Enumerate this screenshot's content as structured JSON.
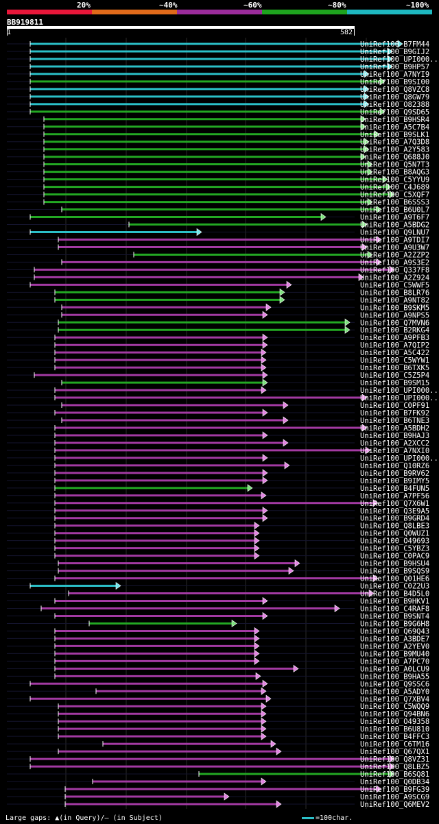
{
  "legend": {
    "labels": [
      "20%",
      "~40%",
      "~60%",
      "~80%",
      "~100%"
    ],
    "colors": [
      "#e8173a",
      "#e06a1a",
      "#9b2c9b",
      "#1ea31e",
      "#1eb8c0"
    ]
  },
  "query": {
    "id": "BB919811",
    "start": "1",
    "end": "582"
  },
  "footer": {
    "gaps_text": "Large gaps: ▲(in Query)/– (in Subject)",
    "scale_text": "=100char."
  },
  "hits": [
    {
      "id": "UniRef100_B7FM44",
      "s": 44,
      "e": 587,
      "c": "cyan"
    },
    {
      "id": "UniRef100_B9GIJ2",
      "s": 44,
      "e": 572,
      "c": "cyan"
    },
    {
      "id": "UniRef100_UPI000..",
      "s": 44,
      "e": 572,
      "c": "cyan"
    },
    {
      "id": "UniRef100_B9HP57",
      "s": 44,
      "e": 572,
      "c": "cyan"
    },
    {
      "id": "UniRef100_A7NYI9",
      "s": 44,
      "e": 538,
      "c": "cyan"
    },
    {
      "id": "UniRef100_B9SI00",
      "s": 44,
      "e": 561,
      "c": "green"
    },
    {
      "id": "UniRef100_Q8VZC8",
      "s": 44,
      "e": 538,
      "c": "cyan"
    },
    {
      "id": "UniRef100_Q8GW79",
      "s": 44,
      "e": 538,
      "c": "cyan"
    },
    {
      "id": "UniRef100_O82388",
      "s": 44,
      "e": 538,
      "c": "cyan"
    },
    {
      "id": "UniRef100_Q9SD65",
      "s": 44,
      "e": 561,
      "c": "green"
    },
    {
      "id": "UniRef100_B9HSR4",
      "s": 64,
      "e": 533,
      "c": "green"
    },
    {
      "id": "UniRef100_A5C7B4",
      "s": 64,
      "e": 533,
      "c": "green"
    },
    {
      "id": "UniRef100_B9SLK1",
      "s": 64,
      "e": 553,
      "c": "green"
    },
    {
      "id": "UniRef100_A7Q3D8",
      "s": 64,
      "e": 538,
      "c": "green"
    },
    {
      "id": "UniRef100_A2Y583",
      "s": 64,
      "e": 538,
      "c": "green"
    },
    {
      "id": "UniRef100_Q688J0",
      "s": 64,
      "e": 533,
      "c": "green"
    },
    {
      "id": "UniRef100_Q5N7T3",
      "s": 64,
      "e": 543,
      "c": "green"
    },
    {
      "id": "UniRef100_B8AQG3",
      "s": 64,
      "e": 543,
      "c": "green"
    },
    {
      "id": "UniRef100_C5YYU9",
      "s": 64,
      "e": 565,
      "c": "green"
    },
    {
      "id": "UniRef100_C4J689",
      "s": 64,
      "e": 570,
      "c": "green"
    },
    {
      "id": "UniRef100_C5XQF7",
      "s": 64,
      "e": 575,
      "c": "green"
    },
    {
      "id": "UniRef100_B6SSS3",
      "s": 64,
      "e": 543,
      "c": "green"
    },
    {
      "id": "UniRef100_B6U0L7",
      "s": 90,
      "e": 556,
      "c": "green"
    },
    {
      "id": "UniRef100_A9T6F7",
      "s": 44,
      "e": 475,
      "c": "green"
    },
    {
      "id": "UniRef100_A5BDG2",
      "s": 188,
      "e": 535,
      "c": "green"
    },
    {
      "id": "UniRef100_Q9LNU7",
      "s": 44,
      "e": 294,
      "c": "cyan"
    },
    {
      "id": "UniRef100_A9TDI7",
      "s": 85,
      "e": 556,
      "c": "purple"
    },
    {
      "id": "UniRef100_A9U3W7",
      "s": 85,
      "e": 535,
      "c": "purple"
    },
    {
      "id": "UniRef100_A2ZZP2",
      "s": 195,
      "e": 543,
      "c": "green"
    },
    {
      "id": "UniRef100_A9S3E2",
      "s": 90,
      "e": 556,
      "c": "purple"
    },
    {
      "id": "UniRef100_Q337F8",
      "s": 50,
      "e": 575,
      "c": "purple"
    },
    {
      "id": "UniRef100_A2Z924",
      "s": 50,
      "e": 530,
      "c": "purple"
    },
    {
      "id": "UniRef100_C5WWF5",
      "s": 44,
      "e": 425,
      "c": "purple"
    },
    {
      "id": "UniRef100_B8LR76",
      "s": 80,
      "e": 415,
      "c": "green"
    },
    {
      "id": "UniRef100_A9NT82",
      "s": 80,
      "e": 415,
      "c": "green"
    },
    {
      "id": "UniRef100_B9SKM5",
      "s": 90,
      "e": 395,
      "c": "purple"
    },
    {
      "id": "UniRef100_A9NPS5",
      "s": 90,
      "e": 390,
      "c": "purple"
    },
    {
      "id": "UniRef100_Q7MVN6",
      "s": 85,
      "e": 510,
      "c": "green"
    },
    {
      "id": "UniRef100_B2RKG4",
      "s": 85,
      "e": 510,
      "c": "green"
    },
    {
      "id": "UniRef100_A9PFB3",
      "s": 80,
      "e": 390,
      "c": "purple"
    },
    {
      "id": "UniRef100_A7QIP2",
      "s": 80,
      "e": 390,
      "c": "purple"
    },
    {
      "id": "UniRef100_A5C422",
      "s": 80,
      "e": 388,
      "c": "purple"
    },
    {
      "id": "UniRef100_C5WYW1",
      "s": 80,
      "e": 388,
      "c": "purple"
    },
    {
      "id": "UniRef100_B6TXK5",
      "s": 80,
      "e": 388,
      "c": "purple"
    },
    {
      "id": "UniRef100_C5Z5P4",
      "s": 50,
      "e": 390,
      "c": "purple"
    },
    {
      "id": "UniRef100_B9SM15",
      "s": 90,
      "e": 390,
      "c": "green"
    },
    {
      "id": "UniRef100_UPI000..",
      "s": 80,
      "e": 388,
      "c": "purple"
    },
    {
      "id": "UniRef100_UPI000..",
      "s": 80,
      "e": 535,
      "c": "purple"
    },
    {
      "id": "UniRef100_C0PF91",
      "s": 90,
      "e": 420,
      "c": "purple"
    },
    {
      "id": "UniRef100_B7FK92",
      "s": 80,
      "e": 390,
      "c": "purple"
    },
    {
      "id": "UniRef100_B6TNE3",
      "s": 90,
      "e": 420,
      "c": "purple"
    },
    {
      "id": "UniRef100_A5BDH2",
      "s": 80,
      "e": 535,
      "c": "purple"
    },
    {
      "id": "UniRef100_B9HAJ3",
      "s": 80,
      "e": 390,
      "c": "purple"
    },
    {
      "id": "UniRef100_A2XCC2",
      "s": 80,
      "e": 420,
      "c": "purple"
    },
    {
      "id": "UniRef100_A7NXI0",
      "s": 80,
      "e": 540,
      "c": "purple"
    },
    {
      "id": "UniRef100_UPI000..",
      "s": 80,
      "e": 390,
      "c": "purple"
    },
    {
      "id": "UniRef100_Q10RZ6",
      "s": 80,
      "e": 422,
      "c": "purple"
    },
    {
      "id": "UniRef100_B9RV62",
      "s": 80,
      "e": 390,
      "c": "purple"
    },
    {
      "id": "UniRef100_B9IMY5",
      "s": 80,
      "e": 390,
      "c": "purple"
    },
    {
      "id": "UniRef100_B4FUN5",
      "s": 80,
      "e": 368,
      "c": "green"
    },
    {
      "id": "UniRef100_A7PF56",
      "s": 80,
      "e": 388,
      "c": "purple"
    },
    {
      "id": "UniRef100_Q7X6W1",
      "s": 80,
      "e": 551,
      "c": "purple"
    },
    {
      "id": "UniRef100_Q3E9A5",
      "s": 80,
      "e": 390,
      "c": "purple"
    },
    {
      "id": "UniRef100_B9GRD4",
      "s": 80,
      "e": 390,
      "c": "purple"
    },
    {
      "id": "UniRef100_Q8LBE3",
      "s": 80,
      "e": 378,
      "c": "purple"
    },
    {
      "id": "UniRef100_Q0WUZ1",
      "s": 80,
      "e": 378,
      "c": "purple"
    },
    {
      "id": "UniRef100_O49693",
      "s": 80,
      "e": 378,
      "c": "purple"
    },
    {
      "id": "UniRef100_C5YBZ3",
      "s": 80,
      "e": 378,
      "c": "purple"
    },
    {
      "id": "UniRef100_C0PAC9",
      "s": 80,
      "e": 378,
      "c": "purple"
    },
    {
      "id": "UniRef100_B9HSU4",
      "s": 85,
      "e": 437,
      "c": "purple"
    },
    {
      "id": "UniRef100_B9SQS9",
      "s": 85,
      "e": 428,
      "c": "purple"
    },
    {
      "id": "UniRef100_Q01HE6",
      "s": 80,
      "e": 551,
      "c": "purple"
    },
    {
      "id": "UniRef100_C0Z2U3",
      "s": 44,
      "e": 176,
      "c": "cyan"
    },
    {
      "id": "UniRef100_B4D5L0",
      "s": 100,
      "e": 545,
      "c": "purple"
    },
    {
      "id": "UniRef100_B9HKV1",
      "s": 80,
      "e": 390,
      "c": "purple"
    },
    {
      "id": "UniRef100_C4RAF8",
      "s": 60,
      "e": 495,
      "c": "purple"
    },
    {
      "id": "UniRef100_B9SNT4",
      "s": 80,
      "e": 390,
      "c": "purple"
    },
    {
      "id": "UniRef100_B9G6H8",
      "s": 130,
      "e": 345,
      "c": "green"
    },
    {
      "id": "UniRef100_Q69Q43",
      "s": 80,
      "e": 378,
      "c": "purple"
    },
    {
      "id": "UniRef100_A3BDE7",
      "s": 80,
      "e": 378,
      "c": "purple"
    },
    {
      "id": "UniRef100_A2YEV0",
      "s": 80,
      "e": 378,
      "c": "purple"
    },
    {
      "id": "UniRef100_B9MU40",
      "s": 80,
      "e": 378,
      "c": "purple"
    },
    {
      "id": "UniRef100_A7PC70",
      "s": 80,
      "e": 378,
      "c": "purple"
    },
    {
      "id": "UniRef100_A0LCU9",
      "s": 80,
      "e": 435,
      "c": "purple"
    },
    {
      "id": "UniRef100_B9HA55",
      "s": 80,
      "e": 380,
      "c": "purple"
    },
    {
      "id": "UniRef100_Q9SSC6",
      "s": 44,
      "e": 390,
      "c": "purple"
    },
    {
      "id": "UniRef100_A5ADY0",
      "s": 140,
      "e": 388,
      "c": "purple"
    },
    {
      "id": "UniRef100_Q7XBV4",
      "s": 44,
      "e": 395,
      "c": "purple"
    },
    {
      "id": "UniRef100_C5WQQ9",
      "s": 85,
      "e": 388,
      "c": "purple"
    },
    {
      "id": "UniRef100_Q94BN6",
      "s": 85,
      "e": 388,
      "c": "purple"
    },
    {
      "id": "UniRef100_O49358",
      "s": 85,
      "e": 388,
      "c": "purple"
    },
    {
      "id": "UniRef100_B6U810",
      "s": 85,
      "e": 388,
      "c": "purple"
    },
    {
      "id": "UniRef100_B4FFC3",
      "s": 85,
      "e": 388,
      "c": "purple"
    },
    {
      "id": "UniRef100_C6TM16",
      "s": 150,
      "e": 402,
      "c": "purple"
    },
    {
      "id": "UniRef100_Q67QX1",
      "s": 85,
      "e": 410,
      "c": "purple"
    },
    {
      "id": "UniRef100_Q8VZ31",
      "s": 44,
      "e": 575,
      "c": "purple"
    },
    {
      "id": "UniRef100_Q8LBZ5",
      "s": 44,
      "e": 575,
      "c": "purple"
    },
    {
      "id": "UniRef100_B6SQ81",
      "s": 290,
      "e": 575,
      "c": "green"
    },
    {
      "id": "UniRef100_Q0DB34",
      "s": 135,
      "e": 388,
      "c": "purple"
    },
    {
      "id": "UniRef100_B9FG39",
      "s": 95,
      "e": 556,
      "c": "purple"
    },
    {
      "id": "UniRef100_A9SCG9",
      "s": 95,
      "e": 334,
      "c": "purple"
    },
    {
      "id": "UniRef100_Q6MEV2",
      "s": 95,
      "e": 410,
      "c": "purple"
    }
  ]
}
